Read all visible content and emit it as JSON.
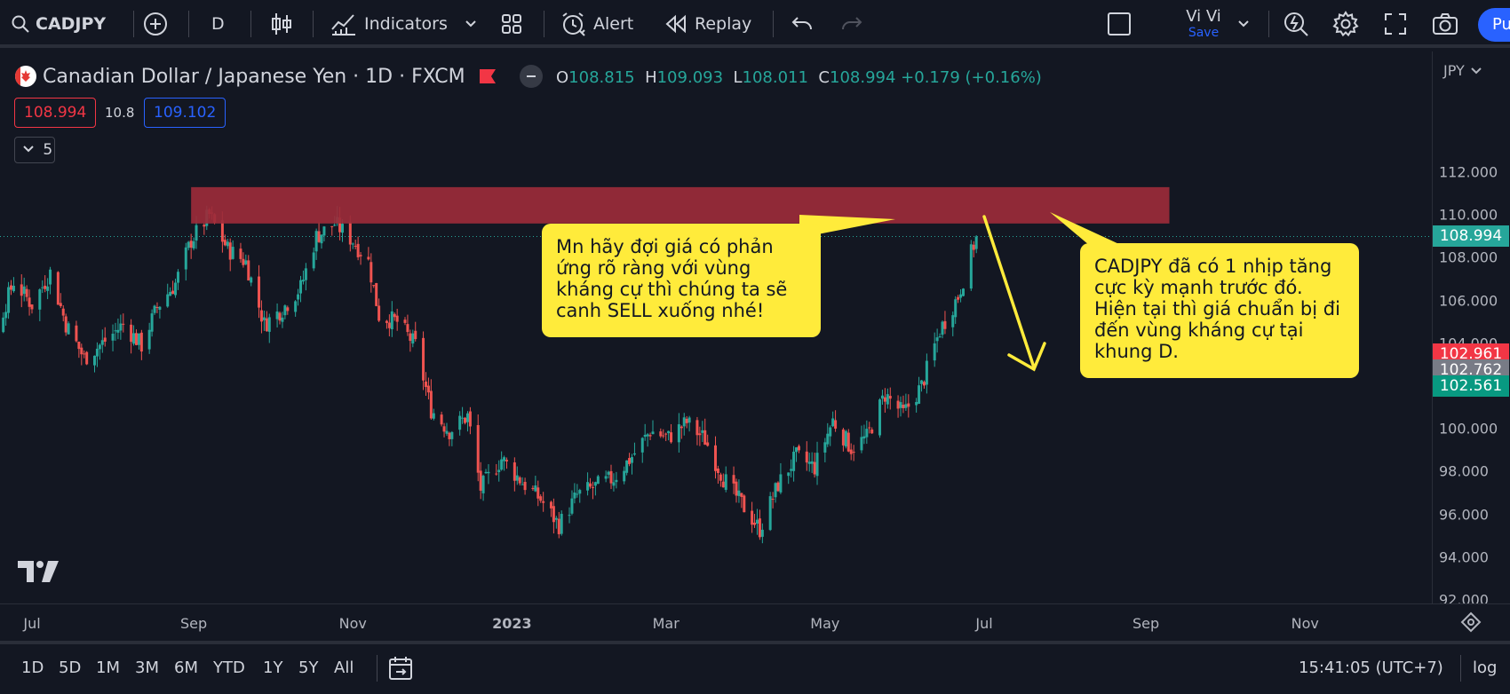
{
  "toolbar": {
    "symbol": "CADJPY",
    "interval": "D",
    "indicators_label": "Indicators",
    "alert_label": "Alert",
    "replay_label": "Replay",
    "layout_name": "Vi Vi",
    "save_label": "Save",
    "publish_label": "Pu"
  },
  "legend": {
    "title": "Canadian Dollar / Japanese Yen · 1D · FXCM",
    "o_label": "O",
    "o": "108.815",
    "h_label": "H",
    "h": "109.093",
    "l_label": "L",
    "l": "108.011",
    "c_label": "C",
    "c": "108.994",
    "change": "+0.179 (+0.16%)",
    "sell_price": "108.994",
    "spread": "10.8",
    "buy_price": "109.102",
    "collapsed_count": "5"
  },
  "annotations": {
    "callout_left": "Mn hãy đợi giá có phản ứng rõ ràng với vùng kháng cự thì chúng ta sẽ canh SELL xuống nhé!",
    "callout_right": "CADJPY đã có 1 nhịp tăng cực kỳ mạnh trước đó. Hiện tại thì giá chuẩn bị đi đến vùng kháng cự tại khung D."
  },
  "price_axis": {
    "currency": "JPY",
    "last_price": "108.994",
    "tag_high": "102.961",
    "tag_mid": "102.762",
    "tag_low": "102.561"
  },
  "colors": {
    "up": "#26a69a",
    "down": "#ef5350",
    "resistance_zone": "#9b2b3a",
    "callout": "#ffeb3b",
    "arrow": "#ffeb3b"
  },
  "chart_data": {
    "type": "candlestick",
    "symbol": "CADJPY",
    "timeframe": "1D",
    "ylim": [
      92,
      114
    ],
    "yticks": [
      "92.000",
      "94.000",
      "96.000",
      "98.000",
      "100.000",
      "102.000",
      "104.000",
      "106.000",
      "108.000",
      "110.000",
      "112.000"
    ],
    "xticks": [
      "Jul",
      "Sep",
      "Nov",
      "2023",
      "Mar",
      "May",
      "Jul",
      "Sep",
      "Nov"
    ],
    "resistance_zone": {
      "from_date": "2022-08-31",
      "to_date": "2023-09-10",
      "low": 109.6,
      "high": 111.3
    },
    "last_close": 108.994,
    "close_path": [
      [
        "2022-06-01",
        104.8
      ],
      [
        "2022-06-10",
        106.2
      ],
      [
        "2022-06-17",
        104.5
      ],
      [
        "2022-06-24",
        106.9
      ],
      [
        "2022-07-01",
        105.8
      ],
      [
        "2022-07-08",
        107.3
      ],
      [
        "2022-07-14",
        104.9
      ],
      [
        "2022-07-21",
        103.3
      ],
      [
        "2022-07-28",
        104.0
      ],
      [
        "2022-08-05",
        104.9
      ],
      [
        "2022-08-12",
        103.9
      ],
      [
        "2022-08-18",
        105.7
      ],
      [
        "2022-08-25",
        106.8
      ],
      [
        "2022-08-31",
        108.8
      ],
      [
        "2022-09-07",
        110.0
      ],
      [
        "2022-09-14",
        108.4
      ],
      [
        "2022-09-21",
        107.8
      ],
      [
        "2022-09-28",
        104.9
      ],
      [
        "2022-10-05",
        105.6
      ],
      [
        "2022-10-12",
        106.6
      ],
      [
        "2022-10-18",
        109.0
      ],
      [
        "2022-10-25",
        109.6
      ],
      [
        "2022-11-01",
        108.8
      ],
      [
        "2022-11-07",
        107.8
      ],
      [
        "2022-11-11",
        105.3
      ],
      [
        "2022-11-18",
        105.0
      ],
      [
        "2022-11-25",
        103.9
      ],
      [
        "2022-12-01",
        100.9
      ],
      [
        "2022-12-08",
        99.9
      ],
      [
        "2022-12-15",
        100.6
      ],
      [
        "2022-12-20",
        97.2
      ],
      [
        "2022-12-28",
        98.6
      ],
      [
        "2023-01-05",
        97.5
      ],
      [
        "2023-01-12",
        96.7
      ],
      [
        "2023-01-19",
        95.5
      ],
      [
        "2023-01-26",
        96.9
      ],
      [
        "2023-02-02",
        97.3
      ],
      [
        "2023-02-09",
        97.7
      ],
      [
        "2023-02-16",
        98.7
      ],
      [
        "2023-02-23",
        99.9
      ],
      [
        "2023-03-02",
        99.6
      ],
      [
        "2023-03-09",
        100.3
      ],
      [
        "2023-03-16",
        99.5
      ],
      [
        "2023-03-23",
        97.7
      ],
      [
        "2023-03-30",
        96.5
      ],
      [
        "2023-04-06",
        95.3
      ],
      [
        "2023-04-13",
        97.4
      ],
      [
        "2023-04-20",
        98.7
      ],
      [
        "2023-04-27",
        98.2
      ],
      [
        "2023-05-04",
        100.4
      ],
      [
        "2023-05-11",
        99.1
      ],
      [
        "2023-05-17",
        99.6
      ],
      [
        "2023-05-24",
        101.6
      ],
      [
        "2023-05-31",
        100.7
      ],
      [
        "2023-06-07",
        102.0
      ],
      [
        "2023-06-14",
        104.6
      ],
      [
        "2023-06-21",
        106.2
      ],
      [
        "2023-06-28",
        108.994
      ]
    ]
  },
  "time_axis": {
    "labels": [
      "Jul",
      "Sep",
      "Nov",
      "2023",
      "Mar",
      "May",
      "Jul",
      "Sep",
      "Nov"
    ]
  },
  "bottom_bar": {
    "ranges": [
      "1D",
      "5D",
      "1M",
      "3M",
      "6M",
      "YTD",
      "1Y",
      "5Y",
      "All"
    ],
    "clock": "15:41:05 (UTC+7)",
    "log_label": "log"
  }
}
